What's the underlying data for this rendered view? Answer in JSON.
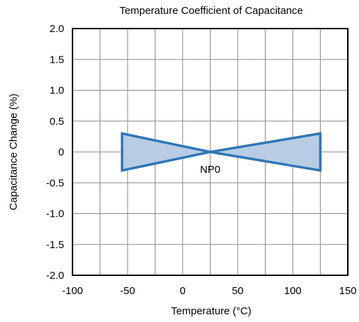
{
  "chart_data": {
    "type": "area",
    "title": "Temperature Coefficient of Capacitance",
    "xlabel": "Temperature (°C)",
    "ylabel": "Capacitance Change (%)",
    "xlim": [
      -100,
      150
    ],
    "ylim": [
      -2.0,
      2.0
    ],
    "x_ticks": [
      -100,
      -50,
      0,
      50,
      100,
      150
    ],
    "x_tick_labels": [
      "-100",
      "-50",
      "0",
      "50",
      "100",
      "150"
    ],
    "y_ticks": [
      2.0,
      1.5,
      1.0,
      0.5,
      0,
      -0.5,
      -1.0,
      -1.5,
      -2.0
    ],
    "y_tick_labels": [
      "2.0",
      "1.5",
      "1.0",
      "0.5",
      "0",
      "-0.5",
      "-1.0",
      "-1.5",
      "-2.0"
    ],
    "x_minor_gridlines": [
      -75,
      -25,
      25,
      75,
      125
    ],
    "grid": true,
    "series": [
      {
        "label": "NP0",
        "label_position": [
          25,
          -0.28
        ],
        "outline": [
          [
            -55,
            0.3
          ],
          [
            25,
            0
          ],
          [
            125,
            0.3
          ],
          [
            125,
            -0.3
          ],
          [
            25,
            0
          ],
          [
            -55,
            -0.3
          ]
        ],
        "fill_color": "#b8cce4",
        "line_color": "#2e75b6"
      }
    ]
  }
}
